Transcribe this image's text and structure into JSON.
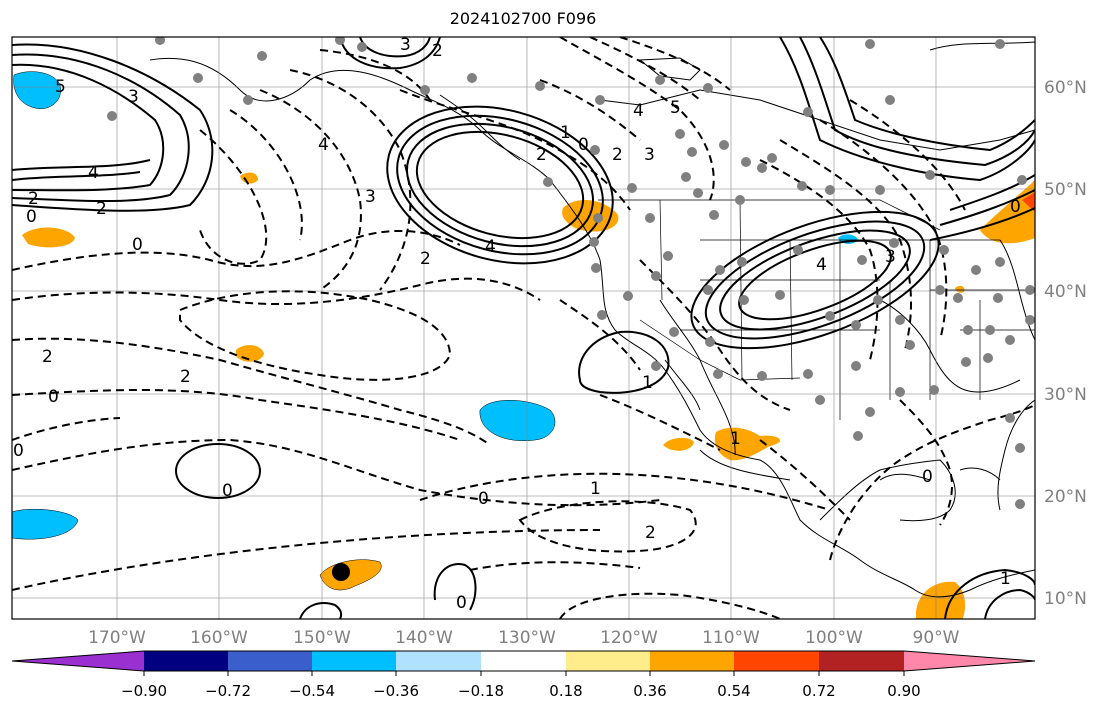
{
  "title": "2024102700 F096",
  "lon_labels": [
    "170°W",
    "160°W",
    "150°W",
    "140°W",
    "130°W",
    "120°W",
    "110°W",
    "100°W",
    "90°W"
  ],
  "lat_labels": [
    "60°N",
    "50°N",
    "40°N",
    "30°N",
    "20°N",
    "10°N"
  ],
  "colorbar": {
    "ticks": [
      "−0.90",
      "−0.72",
      "−0.54",
      "−0.36",
      "−0.18",
      "0.18",
      "0.36",
      "0.54",
      "0.72",
      "0.90"
    ],
    "colors": [
      "#9b30d0",
      "#000080",
      "#3a5fcd",
      "#00bfff",
      "#b0e2ff",
      "#ffffff",
      "#ffec8b",
      "#ffa500",
      "#ff4500",
      "#b22222",
      "#ff88aa"
    ]
  },
  "contour_labels": [
    "5",
    "3",
    "2",
    "4",
    "3",
    "2",
    "0",
    "2",
    "4",
    "3",
    "2",
    "0",
    "4",
    "4",
    "5",
    "1",
    "3",
    "2",
    "2",
    "0",
    "2",
    "1",
    "4",
    "3",
    "0",
    "0",
    "2",
    "1",
    "0",
    "1",
    "2",
    "0",
    "0",
    "0",
    "1",
    "0"
  ]
}
